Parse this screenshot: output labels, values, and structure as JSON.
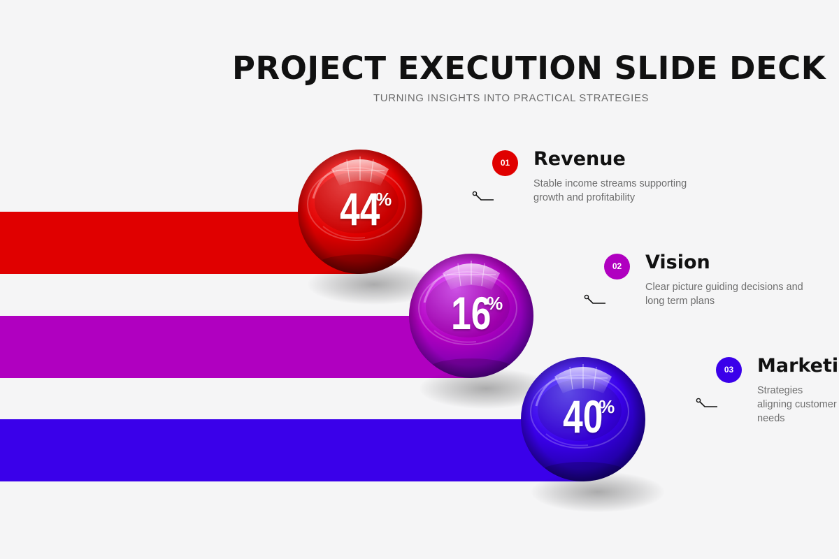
{
  "header": {
    "title": "PROJECT EXECUTION SLIDE DECK",
    "subtitle": "TURNING INSIGHTS INTO PRACTICAL STRATEGIES"
  },
  "items": [
    {
      "number": "01",
      "percent": "44",
      "percent_sign": "%",
      "title": "Revenue",
      "description": "Stable income streams supporting growth and profitability",
      "color": "#e00000",
      "color_light": "#ff4a4a",
      "color_dark": "#7a0000"
    },
    {
      "number": "02",
      "percent": "16",
      "percent_sign": "%",
      "title": "Vision",
      "description": "Clear picture guiding decisions and long term plans",
      "color": "#b000c0",
      "color_light": "#e45cff",
      "color_dark": "#6400a8"
    },
    {
      "number": "03",
      "percent": "40",
      "percent_sign": "%",
      "title": "Marketing",
      "description": "Strategies aligning customer needs",
      "color": "#3a00ea",
      "color_light": "#6a54ff",
      "color_dark": "#1a0090"
    }
  ]
}
